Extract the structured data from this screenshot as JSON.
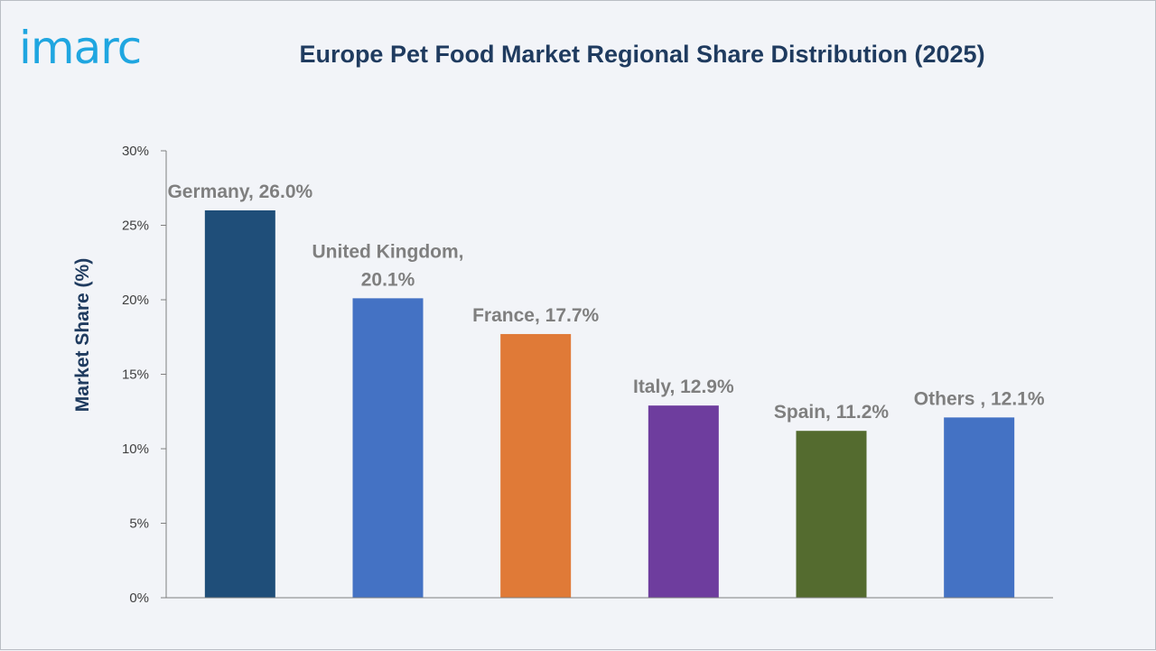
{
  "brand": {
    "logo_text": "imarc"
  },
  "chart_data": {
    "type": "bar",
    "title": "Europe Pet Food Market Regional Share Distribution (2025)",
    "xlabel": "",
    "ylabel": "Market Share (%)",
    "ylim": [
      0,
      30
    ],
    "yticks": [
      0,
      5,
      10,
      15,
      20,
      25,
      30
    ],
    "ytick_labels": [
      "0%",
      "5%",
      "10%",
      "15%",
      "20%",
      "25%",
      "30%"
    ],
    "grid": false,
    "categories": [
      "Germany",
      "United Kingdom",
      "France",
      "Italy",
      "Spain",
      "Others "
    ],
    "values": [
      26.0,
      20.1,
      17.7,
      12.9,
      11.2,
      12.1
    ],
    "data_labels": [
      [
        "Germany, 26.0%"
      ],
      [
        "United Kingdom,",
        "20.1%"
      ],
      [
        "France, 17.7%"
      ],
      [
        "Italy, 12.9%"
      ],
      [
        "Spain, 11.2%"
      ],
      [
        "Others , 12.1%"
      ]
    ],
    "colors": [
      "#1f4e79",
      "#4472c4",
      "#e07a37",
      "#6e3d9e",
      "#546b2f",
      "#4472c4"
    ],
    "axis_color": "#7f7f7f",
    "label_color": "#7f7f7f",
    "ylabel_color": "#1f3b5f"
  }
}
